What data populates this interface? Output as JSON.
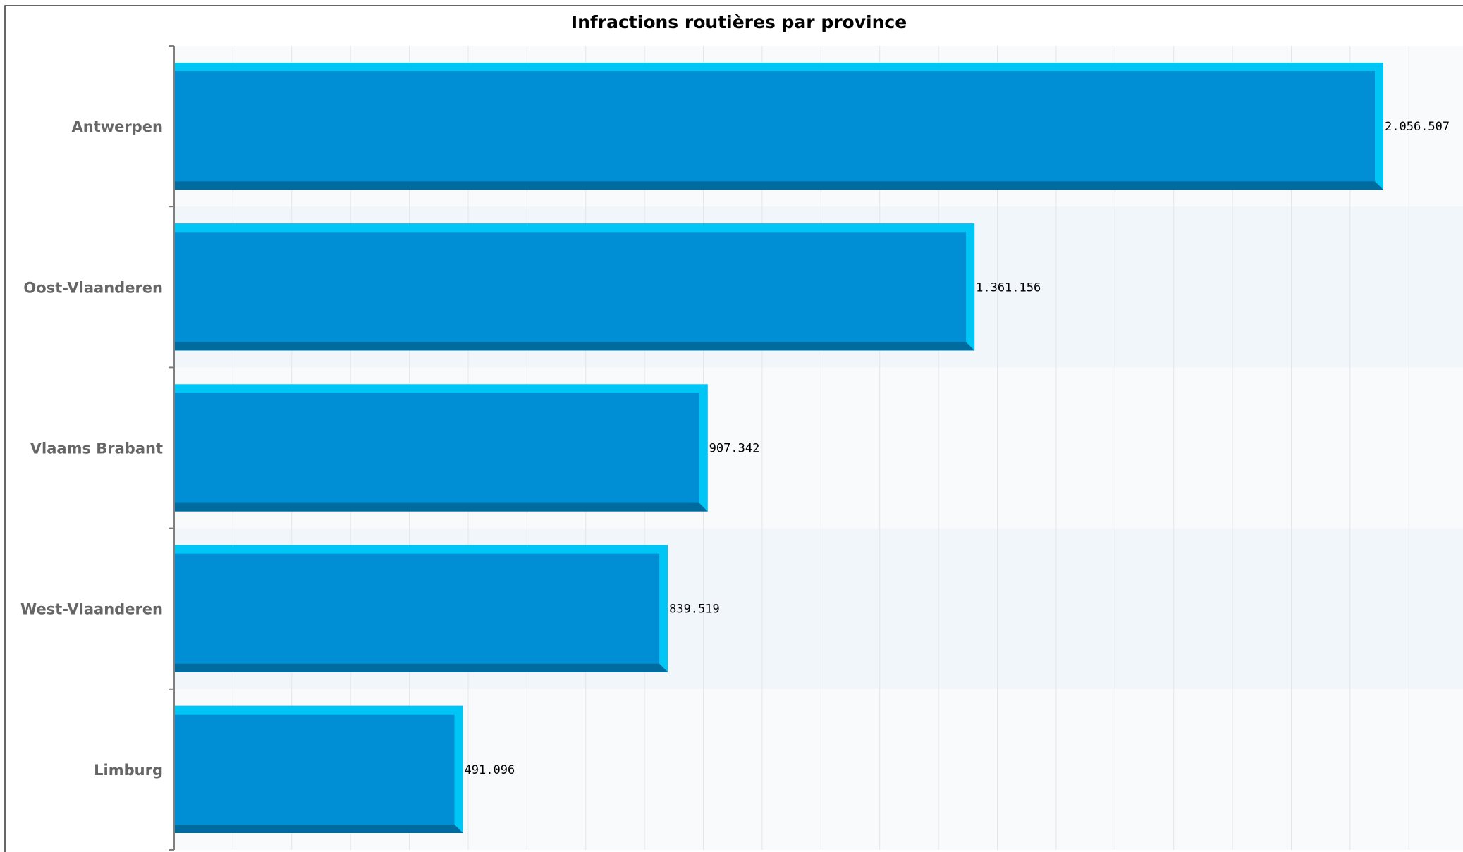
{
  "chart_data": {
    "type": "bar",
    "orientation": "horizontal",
    "title": "Infractions routières par province",
    "categories": [
      "Antwerpen",
      "Oost-Vlaanderen",
      "Vlaams Brabant",
      "West-Vlaanderen",
      "Limburg"
    ],
    "values": [
      2056507,
      1361156,
      907342,
      839519,
      491096
    ],
    "value_labels": [
      "2.056.507",
      "1.361.156",
      "907.342",
      "839.519",
      "491.096"
    ],
    "xlim": [
      0,
      2200000
    ],
    "xlabel": "",
    "ylabel": "",
    "grid": true,
    "legend": "none",
    "colors": {
      "bar": "#008fd5",
      "bar_top": "#00c6f6",
      "bar_bottom": "#006b9e",
      "band_alt": "#f1f6fb",
      "band": "#f9fafb",
      "grid": "#e3e6ea",
      "axis": "#7f7f7f",
      "category_text": "#666666",
      "value_text": "#000000",
      "title_text": "#000000",
      "border": "#333333"
    }
  }
}
